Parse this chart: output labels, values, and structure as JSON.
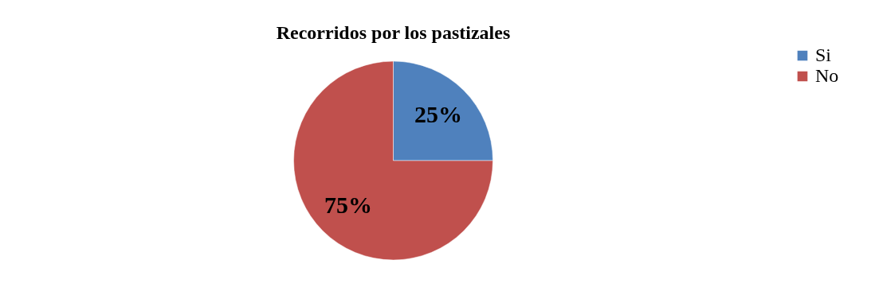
{
  "chart_data": {
    "type": "pie",
    "title": "Recorridos por los pastizales",
    "categories": [
      "Si",
      "No"
    ],
    "values": [
      25,
      75
    ],
    "colors": [
      "#4f81bd",
      "#c0504d"
    ],
    "value_labels": [
      "25%",
      "75%"
    ],
    "legend": "right"
  }
}
